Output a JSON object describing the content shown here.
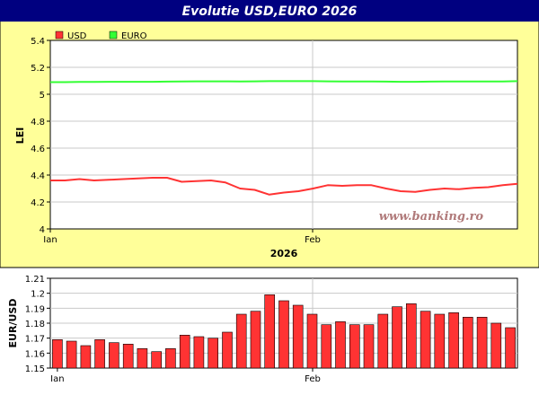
{
  "chart_data": [
    {
      "type": "line",
      "title": "Evolutie USD,EURO 2026",
      "xlabel": "2026",
      "ylabel": "LEI",
      "ylim": [
        4,
        5.4
      ],
      "yticks": [
        "5.4",
        "5.2",
        "5",
        "4.8",
        "4.6",
        "4.4",
        "4.2",
        "4"
      ],
      "xtick_labels": [
        "Ian",
        "Feb"
      ],
      "legend": "top-left",
      "grid": true,
      "watermark": "www.banking.ro",
      "series": [
        {
          "name": "USD",
          "color": "#ff3333",
          "values": [
            4.36,
            4.36,
            4.37,
            4.36,
            4.365,
            4.37,
            4.375,
            4.38,
            4.38,
            4.35,
            4.355,
            4.36,
            4.345,
            4.3,
            4.29,
            4.255,
            4.27,
            4.28,
            4.3,
            4.325,
            4.32,
            4.325,
            4.325,
            4.3,
            4.28,
            4.275,
            4.29,
            4.3,
            4.295,
            4.305,
            4.31,
            4.325,
            4.335
          ]
        },
        {
          "name": "EURO",
          "color": "#33ff33",
          "values": [
            5.09,
            5.09,
            5.092,
            5.092,
            5.093,
            5.093,
            5.093,
            5.093,
            5.094,
            5.095,
            5.096,
            5.096,
            5.096,
            5.095,
            5.096,
            5.097,
            5.097,
            5.097,
            5.097,
            5.096,
            5.095,
            5.095,
            5.095,
            5.094,
            5.093,
            5.093,
            5.094,
            5.095,
            5.095,
            5.095,
            5.095,
            5.095,
            5.097
          ]
        }
      ]
    },
    {
      "type": "bar",
      "ylabel": "EUR/USD",
      "ylim": [
        1.15,
        1.21
      ],
      "yticks": [
        "1.21",
        "1.2",
        "1.19",
        "1.18",
        "1.17",
        "1.16",
        "1.15"
      ],
      "xtick_labels": [
        "Ian",
        "Feb"
      ],
      "grid": true,
      "series": [
        {
          "color": "#ff3333",
          "values": [
            1.169,
            1.168,
            1.165,
            1.169,
            1.167,
            1.166,
            1.163,
            1.161,
            1.163,
            1.172,
            1.171,
            1.17,
            1.174,
            1.186,
            1.188,
            1.199,
            1.195,
            1.192,
            1.186,
            1.179,
            1.181,
            1.179,
            1.179,
            1.186,
            1.191,
            1.193,
            1.188,
            1.186,
            1.187,
            1.184,
            1.184,
            1.18,
            1.177
          ]
        }
      ]
    }
  ]
}
